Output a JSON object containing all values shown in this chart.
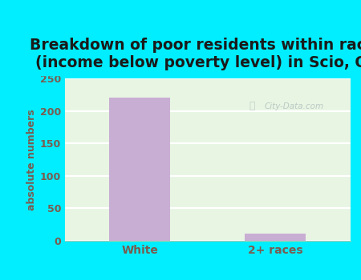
{
  "title": "Breakdown of poor residents within races\n(income below poverty level) in Scio, OH",
  "categories": [
    "White",
    "2+ races"
  ],
  "values": [
    221,
    11
  ],
  "bar_colors": [
    "#c9aed4",
    "#c9aed4"
  ],
  "ylim": [
    0,
    250
  ],
  "yticks": [
    0,
    50,
    100,
    150,
    200,
    250
  ],
  "ylabel": "absolute numbers",
  "bg_outer": "#00eeff",
  "bg_plot": "#e8f5e3",
  "grid_color": "#ffffff",
  "title_color": "#1a1a1a",
  "tick_label_color": "#7a5c50",
  "axis_label_color": "#7a5c50",
  "watermark": "City-Data.com",
  "title_fontsize": 13.5,
  "ylabel_fontsize": 9,
  "tick_fontsize": 9,
  "xtick_fontsize": 10
}
